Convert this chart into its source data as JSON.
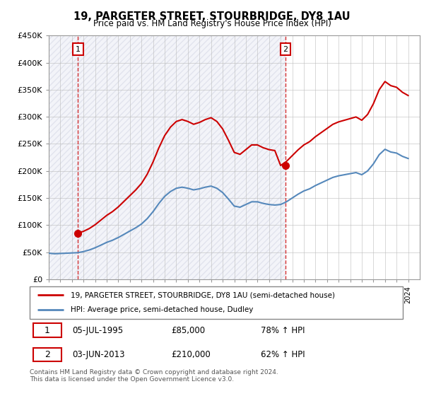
{
  "title_line1": "19, PARGETER STREET, STOURBRIDGE, DY8 1AU",
  "title_line2": "Price paid vs. HM Land Registry's House Price Index (HPI)",
  "ylabel_ticks": [
    "£0",
    "£50K",
    "£100K",
    "£150K",
    "£200K",
    "£250K",
    "£300K",
    "£350K",
    "£400K",
    "£450K"
  ],
  "ylim": [
    0,
    450000
  ],
  "xlim_start": 1993.0,
  "xlim_end": 2025.0,
  "purchase1_x": 1995.51,
  "purchase1_y": 85000,
  "purchase2_x": 2013.42,
  "purchase2_y": 210000,
  "vline1_x": 1995.51,
  "vline2_x": 2013.42,
  "legend_line1": "19, PARGETER STREET, STOURBRIDGE, DY8 1AU (semi-detached house)",
  "legend_line2": "HPI: Average price, semi-detached house, Dudley",
  "footer": "Contains HM Land Registry data © Crown copyright and database right 2024.\nThis data is licensed under the Open Government Licence v3.0.",
  "line_color_red": "#cc0000",
  "line_color_blue": "#5588bb",
  "grid_color": "#bbbbbb",
  "hpi_years": [
    1993.0,
    1993.5,
    1994.0,
    1994.5,
    1995.0,
    1995.5,
    1996.0,
    1996.5,
    1997.0,
    1997.5,
    1998.0,
    1998.5,
    1999.0,
    1999.5,
    2000.0,
    2000.5,
    2001.0,
    2001.5,
    2002.0,
    2002.5,
    2003.0,
    2003.5,
    2004.0,
    2004.5,
    2005.0,
    2005.5,
    2006.0,
    2006.5,
    2007.0,
    2007.5,
    2008.0,
    2008.5,
    2009.0,
    2009.5,
    2010.0,
    2010.5,
    2011.0,
    2011.5,
    2012.0,
    2012.5,
    2013.0,
    2013.5,
    2014.0,
    2014.5,
    2015.0,
    2015.5,
    2016.0,
    2016.5,
    2017.0,
    2017.5,
    2018.0,
    2018.5,
    2019.0,
    2019.5,
    2020.0,
    2020.5,
    2021.0,
    2021.5,
    2022.0,
    2022.5,
    2023.0,
    2023.5,
    2024.0
  ],
  "hpi_values": [
    48000,
    47000,
    47500,
    48000,
    48500,
    49000,
    51000,
    54000,
    58000,
    63000,
    68000,
    72000,
    77000,
    83000,
    89000,
    95000,
    102000,
    112000,
    125000,
    140000,
    153000,
    162000,
    168000,
    170000,
    168000,
    165000,
    167000,
    170000,
    172000,
    168000,
    160000,
    148000,
    135000,
    133000,
    138000,
    143000,
    143000,
    140000,
    138000,
    137000,
    138000,
    143000,
    150000,
    157000,
    163000,
    167000,
    173000,
    178000,
    183000,
    188000,
    191000,
    193000,
    195000,
    197000,
    193000,
    200000,
    213000,
    230000,
    240000,
    235000,
    233000,
    227000,
    223000
  ],
  "red_years": [
    1995.5,
    1996.0,
    1996.5,
    1997.0,
    1997.5,
    1998.0,
    1998.5,
    1999.0,
    1999.5,
    2000.0,
    2000.5,
    2001.0,
    2001.5,
    2002.0,
    2002.5,
    2003.0,
    2003.5,
    2004.0,
    2004.5,
    2005.0,
    2005.5,
    2006.0,
    2006.5,
    2007.0,
    2007.5,
    2008.0,
    2008.5,
    2009.0,
    2009.5,
    2010.0,
    2010.5,
    2011.0,
    2011.5,
    2012.0,
    2012.5,
    2013.0,
    2013.5,
    2014.0,
    2014.5,
    2015.0,
    2015.5,
    2016.0,
    2016.5,
    2017.0,
    2017.5,
    2018.0,
    2018.5,
    2019.0,
    2019.5,
    2020.0,
    2020.5,
    2021.0,
    2021.5,
    2022.0,
    2022.5,
    2023.0,
    2023.5,
    2024.0
  ],
  "red_hpi_base_values": [
    49000,
    51000,
    54000,
    58000,
    63000,
    68000,
    72000,
    77000,
    83000,
    89000,
    95000,
    102000,
    112000,
    125000,
    140000,
    153000,
    162000,
    168000,
    170000,
    168000,
    165000,
    167000,
    170000,
    172000,
    168000,
    160000,
    148000,
    135000,
    133000,
    138000,
    143000,
    143000,
    140000,
    138000,
    137000,
    138000,
    143000,
    150000,
    157000,
    163000,
    167000,
    173000,
    178000,
    183000,
    188000,
    191000,
    193000,
    195000,
    197000,
    193000,
    200000,
    213000,
    230000,
    240000,
    235000,
    233000,
    227000,
    223000
  ],
  "red_hpi_at_purchase1": 49000,
  "red_purchase1_price": 85000,
  "red_hpi_at_purchase2_idx": 35,
  "red_purchase2_price": 210000
}
